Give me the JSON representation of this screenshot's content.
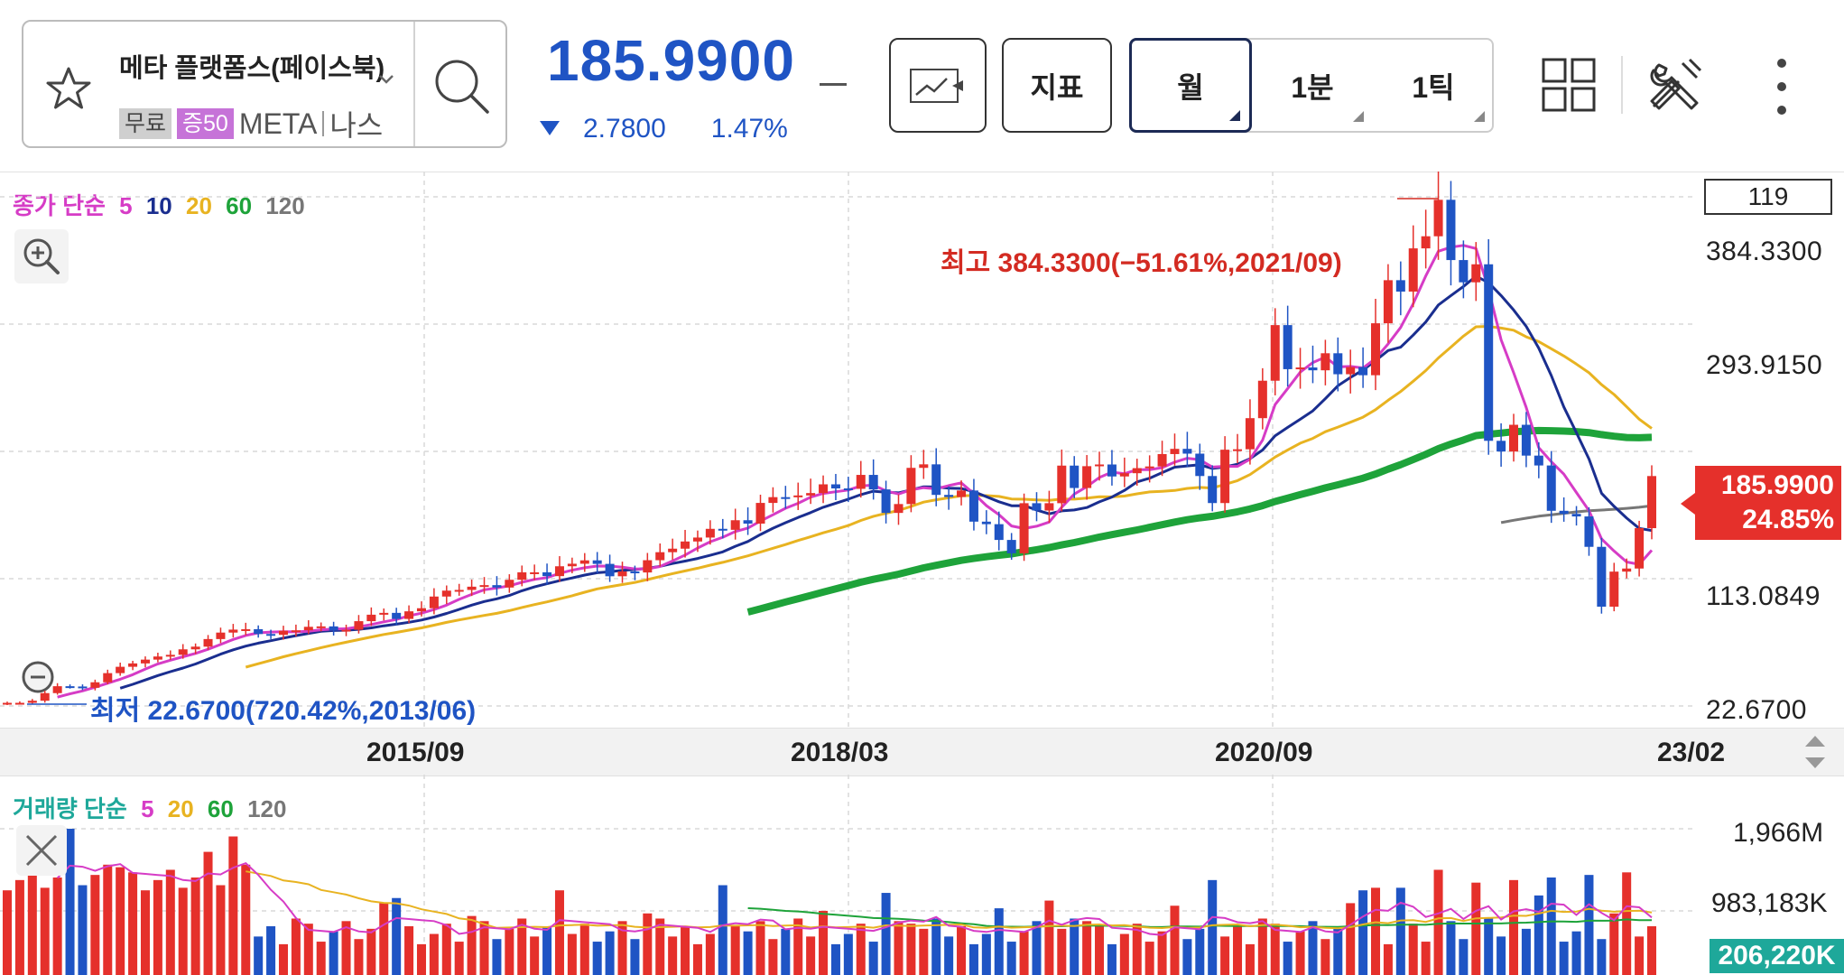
{
  "header": {
    "stock_name": "메타 플랫폼스(페이스북)",
    "tags": {
      "free": "무료",
      "margin": "증50",
      "ticker": "META",
      "market": "나스"
    },
    "price": "185.9900",
    "change": "2.7800",
    "change_pct": "1.47%",
    "change_direction": "down",
    "buttons": {
      "indicator": "지표"
    },
    "periods": [
      {
        "label": "월",
        "active": true
      },
      {
        "label": "1분",
        "active": false
      },
      {
        "label": "1틱",
        "active": false
      }
    ],
    "icons": [
      "star-icon",
      "search-icon",
      "chart-type-icon",
      "grid-layout-icon",
      "tools-icon",
      "more-vertical-icon"
    ]
  },
  "price_panel": {
    "legend": {
      "title": "종가 단순",
      "ma": [
        "5",
        "10",
        "20",
        "60",
        "120"
      ]
    },
    "count_box": "119",
    "price_labels": [
      "384.3300",
      "293.9150",
      "113.0849",
      "22.6700"
    ],
    "current_price": "185.9900",
    "current_pct": "24.85%",
    "high_annotation": "최고 384.3300(−51.61%,2021/09)",
    "low_annotation": "최저 22.6700(720.42%,2013/06)"
  },
  "date_axis": [
    "2015/09",
    "2018/03",
    "2020/09",
    "23/02"
  ],
  "volume_panel": {
    "legend": {
      "title": "거래량 단순",
      "ma": [
        "5",
        "20",
        "60",
        "120"
      ]
    },
    "labels": [
      "1,966M",
      "983,183K"
    ],
    "current_volume": "206,220K"
  },
  "colors": {
    "up": "#e5302b",
    "down": "#1f54c4",
    "ma5": "#d63cc6",
    "ma10": "#1a2e8f",
    "ma20": "#e8b321",
    "ma60": "#1ea33a",
    "ma120": "#777777"
  },
  "chart_data": {
    "type": "candlestick",
    "period": "monthly",
    "x_start": "2013/06",
    "x_end": "2023/02",
    "ylim": [
      22.67,
      384.33
    ],
    "close": [
      24.9,
      24.9,
      26.4,
      31.8,
      36.7,
      36.5,
      35.6,
      39.5,
      46.0,
      50.5,
      52.9,
      55.6,
      57.8,
      59.0,
      62.9,
      64.8,
      70.2,
      74.8,
      76.9,
      77.2,
      73.8,
      73.2,
      76.1,
      76.4,
      78.9,
      79.2,
      76.3,
      76.8,
      82.9,
      87.5,
      88.8,
      84.5,
      89.9,
      92.1,
      100.4,
      104.6,
      105.1,
      107.4,
      108.5,
      106.8,
      112.3,
      117.6,
      117.6,
      114.9,
      121.9,
      123.7,
      126.1,
      123.6,
      114.8,
      118.2,
      117.5,
      126.2,
      131.9,
      134.4,
      139.5,
      142.3,
      148.5,
      147.8,
      154.6,
      152.2,
      166.9,
      171.0,
      170.9,
      172.2,
      173.9,
      180.1,
      177.2,
      176.9,
      186.8,
      176.5,
      159.8,
      166.1,
      191.8,
      194.3,
      172.6,
      171.1,
      175.7,
      153.6,
      151.8,
      140.6,
      131.1,
      166.7,
      161.5,
      166.7,
      193.4,
      177.5,
      193.0,
      194.2,
      185.7,
      188.0,
      191.6,
      192.8,
      201.6,
      205.3,
      201.9,
      186.0,
      166.8,
      204.7,
      205.0,
      227.1,
      253.7,
      293.2,
      261.9,
      263.1,
      261.1,
      273.2,
      258.3,
      263.4,
      257.6,
      294.5,
      325.1,
      317.0,
      347.7,
      356.3,
      382.2,
      339.4,
      323.6,
      336.4,
      211.0,
      203.4,
      222.4,
      200.5,
      193.5,
      161.3,
      159.1,
      157.3,
      135.7,
      93.2,
      118.1,
      120.3,
      148.97,
      185.99
    ],
    "volume_scale_max": "1,966M"
  }
}
